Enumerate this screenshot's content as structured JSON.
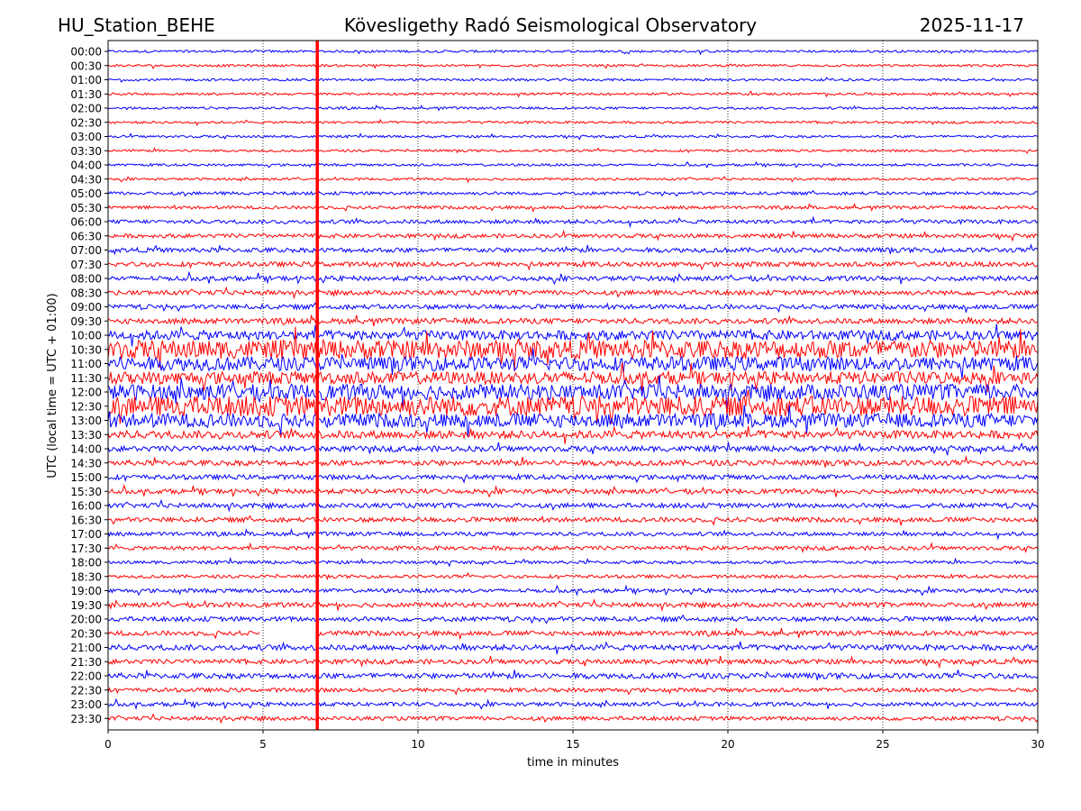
{
  "header": {
    "station": "HU_Station_BEHE",
    "observatory": "Kövesligethy Radó Seismological Observatory",
    "date": "2025-11-17"
  },
  "chart_data": {
    "type": "line",
    "title": "Kövesligethy Radó Seismological Observatory",
    "xlabel": "time in minutes",
    "ylabel": "UTC (local time = UTC + 01:00)",
    "xlim": [
      0,
      30
    ],
    "x_ticks": [
      "0",
      "5",
      "10",
      "15",
      "20",
      "25",
      "30"
    ],
    "grid": "vertical dotted at each 5 minutes",
    "colors": {
      "even_row": "#0000ff",
      "odd_row": "#ff0000",
      "marker": "#ff0000"
    },
    "marker_minute": 6.75,
    "rows": [
      {
        "label": "00:00",
        "amp": 0.15
      },
      {
        "label": "00:30",
        "amp": 0.15
      },
      {
        "label": "01:00",
        "amp": 0.15
      },
      {
        "label": "01:30",
        "amp": 0.15
      },
      {
        "label": "02:00",
        "amp": 0.15
      },
      {
        "label": "02:30",
        "amp": 0.15
      },
      {
        "label": "03:00",
        "amp": 0.15
      },
      {
        "label": "03:30",
        "amp": 0.15
      },
      {
        "label": "04:00",
        "amp": 0.15
      },
      {
        "label": "04:30",
        "amp": 0.15
      },
      {
        "label": "05:00",
        "amp": 0.2
      },
      {
        "label": "05:30",
        "amp": 0.2
      },
      {
        "label": "06:00",
        "amp": 0.25
      },
      {
        "label": "06:30",
        "amp": 0.25
      },
      {
        "label": "07:00",
        "amp": 0.3
      },
      {
        "label": "07:30",
        "amp": 0.3
      },
      {
        "label": "08:00",
        "amp": 0.3
      },
      {
        "label": "08:30",
        "amp": 0.3
      },
      {
        "label": "09:00",
        "amp": 0.3
      },
      {
        "label": "09:30",
        "amp": 0.35
      },
      {
        "label": "10:00",
        "amp": 0.6
      },
      {
        "label": "10:30",
        "amp": 1.2
      },
      {
        "label": "11:00",
        "amp": 0.9
      },
      {
        "label": "11:30",
        "amp": 0.8
      },
      {
        "label": "12:00",
        "amp": 1.0
      },
      {
        "label": "12:30",
        "amp": 1.3
      },
      {
        "label": "13:00",
        "amp": 0.9
      },
      {
        "label": "13:30",
        "amp": 0.5
      },
      {
        "label": "14:00",
        "amp": 0.35
      },
      {
        "label": "14:30",
        "amp": 0.35
      },
      {
        "label": "15:00",
        "amp": 0.3
      },
      {
        "label": "15:30",
        "amp": 0.3
      },
      {
        "label": "16:00",
        "amp": 0.3
      },
      {
        "label": "16:30",
        "amp": 0.3
      },
      {
        "label": "17:00",
        "amp": 0.25
      },
      {
        "label": "17:30",
        "amp": 0.25
      },
      {
        "label": "18:00",
        "amp": 0.2
      },
      {
        "label": "18:30",
        "amp": 0.2
      },
      {
        "label": "19:00",
        "amp": 0.25
      },
      {
        "label": "19:30",
        "amp": 0.3
      },
      {
        "label": "20:00",
        "amp": 0.3
      },
      {
        "label": "20:30",
        "amp": 0.3
      },
      {
        "label": "21:00",
        "amp": 0.35
      },
      {
        "label": "21:30",
        "amp": 0.3
      },
      {
        "label": "22:00",
        "amp": 0.35
      },
      {
        "label": "22:30",
        "amp": 0.25
      },
      {
        "label": "23:00",
        "amp": 0.25
      },
      {
        "label": "23:30",
        "amp": 0.25
      }
    ],
    "gaps": [
      {
        "row": 41,
        "from_min": 4.9,
        "to_min": 6.75
      }
    ]
  }
}
